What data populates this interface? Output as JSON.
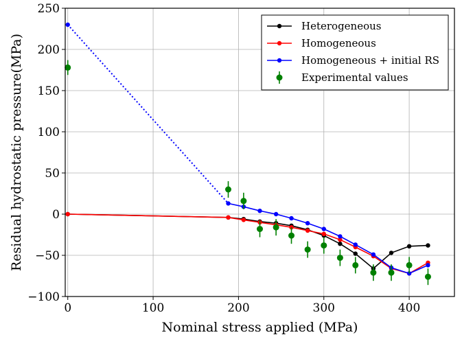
{
  "chart_data": {
    "type": "line",
    "xlabel": "Nominal stress applied (MPa)",
    "ylabel": "Residual hydrostatic pressure(MPa)",
    "xlim": [
      -3,
      453
    ],
    "ylim": [
      -100,
      250
    ],
    "xticks": [
      0,
      100,
      200,
      300,
      400
    ],
    "yticks": [
      -100,
      -50,
      0,
      50,
      100,
      150,
      200,
      250
    ],
    "xtick_labels": [
      "0",
      "100",
      "200",
      "300",
      "400"
    ],
    "ytick_labels": [
      "−100",
      "−50",
      "0",
      "50",
      "100",
      "150",
      "200",
      "250"
    ],
    "grid": true,
    "legend_position": "top-right",
    "series": [
      {
        "name": "Heterogeneous",
        "color": "#000000",
        "x": [
          0,
          188,
          206,
          225,
          244,
          262,
          281,
          300,
          319,
          337,
          358,
          379,
          400,
          422
        ],
        "y": [
          0,
          -4,
          -6,
          -9,
          -11,
          -14,
          -19,
          -26,
          -36,
          -48,
          -66,
          -47,
          -39,
          -38
        ]
      },
      {
        "name": "Homogeneous",
        "color": "#ff0000",
        "x": [
          0,
          188,
          206,
          225,
          244,
          262,
          281,
          300,
          319,
          337,
          358,
          379,
          400,
          422
        ],
        "y": [
          0,
          -4,
          -7,
          -10,
          -13,
          -16,
          -20,
          -24,
          -31,
          -40,
          -51,
          -66,
          -72,
          -59
        ]
      },
      {
        "name": "Homogeneous + initial RS",
        "color": "#0000ff",
        "x": [
          0,
          188,
          206,
          225,
          244,
          262,
          281,
          300,
          319,
          337,
          358,
          379,
          400,
          422
        ],
        "y": [
          230,
          13,
          9,
          4,
          0,
          -5,
          -11,
          -18,
          -27,
          -37,
          -49,
          -65,
          -72,
          -62
        ],
        "dotted_until_index": 1
      },
      {
        "name": "Experimental values",
        "color": "#008000",
        "marker": "errorbar",
        "x": [
          0,
          188,
          206,
          225,
          244,
          262,
          281,
          300,
          319,
          337,
          358,
          379,
          400,
          422
        ],
        "y": [
          178,
          30,
          16,
          -18,
          -16,
          -26,
          -43,
          -38,
          -53,
          -62,
          -71,
          -71,
          -62,
          -76
        ],
        "error": [
          9,
          10,
          10,
          10,
          10,
          10,
          10,
          10,
          10,
          10,
          10,
          10,
          10,
          10
        ]
      }
    ]
  }
}
